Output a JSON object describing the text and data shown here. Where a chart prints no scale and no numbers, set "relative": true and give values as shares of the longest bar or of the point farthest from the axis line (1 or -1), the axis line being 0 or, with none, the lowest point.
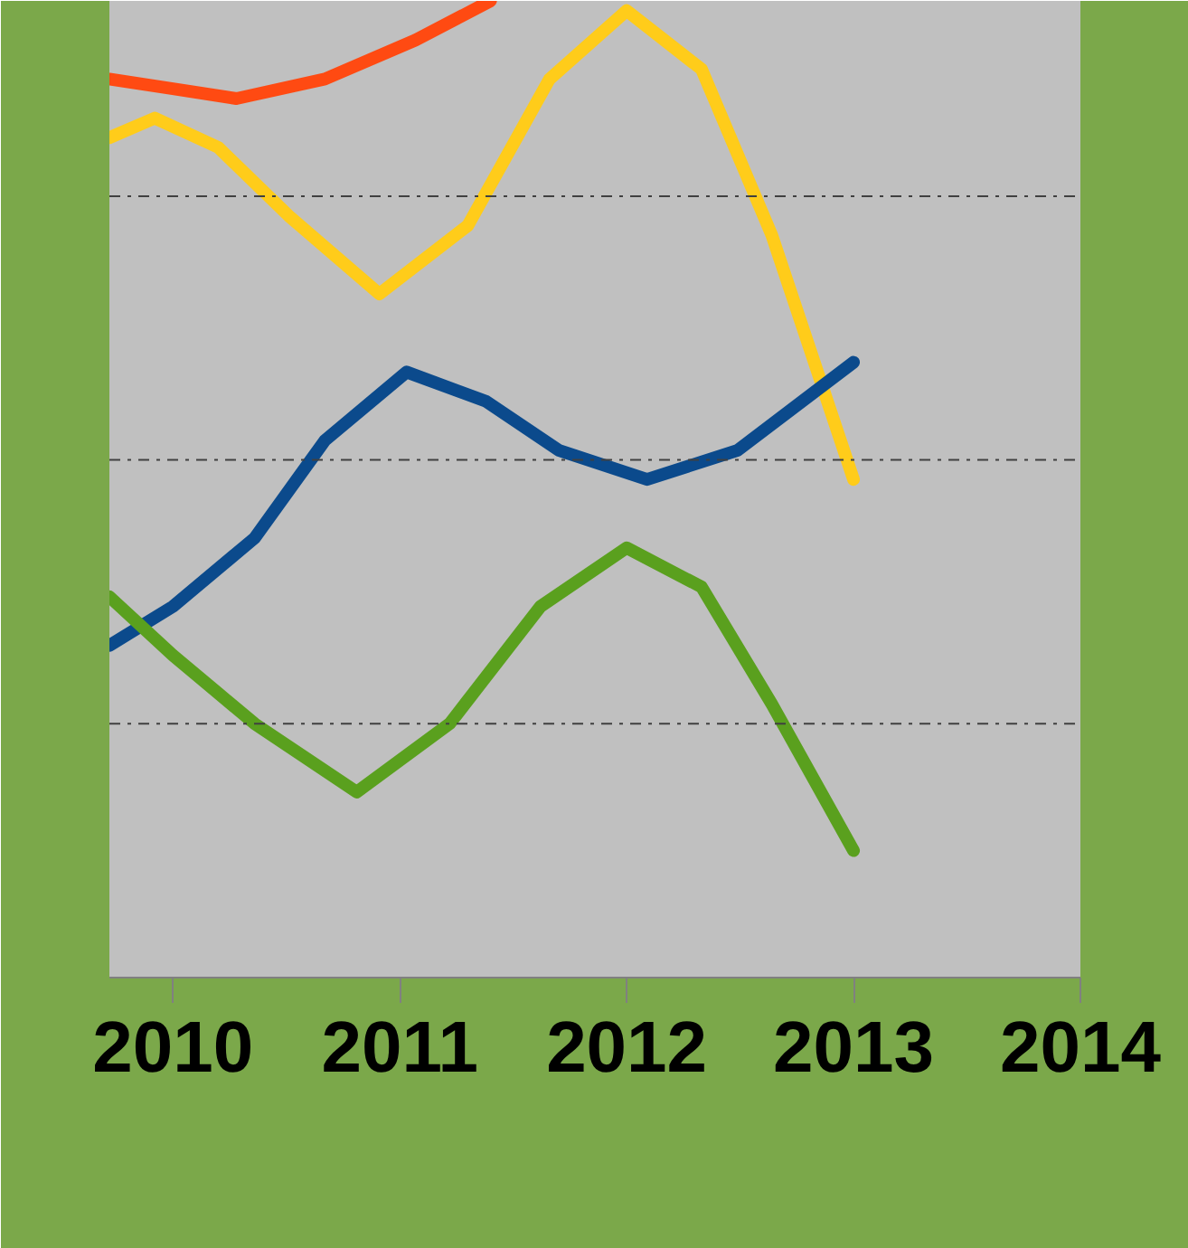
{
  "chart_data": {
    "type": "line",
    "relative": true,
    "xlim": [
      2009.72,
      2014
    ],
    "xticks": [
      2010,
      2011,
      2012,
      2013,
      2014
    ],
    "grid": false,
    "marker": "none",
    "line_style": "solid",
    "series": [
      {
        "color": "#ff4a12",
        "x": [
          2009.72,
          2010.0,
          2010.28,
          2010.67,
          2011.07,
          2011.4
        ],
        "values": [
          0.92,
          0.91,
          0.9,
          0.92,
          0.96,
          1.0
        ]
      },
      {
        "color": "#ffcc1a",
        "x": [
          2009.72,
          2009.92,
          2010.2,
          2010.51,
          2010.91,
          2011.3,
          2011.66,
          2012.0,
          2012.33,
          2012.64,
          2013.0
        ],
        "values": [
          0.86,
          0.88,
          0.85,
          0.78,
          0.7,
          0.77,
          0.92,
          0.99,
          0.93,
          0.76,
          0.51
        ]
      },
      {
        "color": "#0b4a8c",
        "x": [
          2009.72,
          2010.0,
          2010.36,
          2010.67,
          2011.03,
          2011.38,
          2011.7,
          2012.09,
          2012.49,
          2013.0
        ],
        "values": [
          0.34,
          0.38,
          0.45,
          0.55,
          0.62,
          0.59,
          0.54,
          0.51,
          0.54,
          0.63
        ]
      },
      {
        "color": "#5aa01e",
        "x": [
          2009.72,
          2010.0,
          2010.36,
          2010.81,
          2011.22,
          2011.62,
          2012.0,
          2012.33,
          2012.64,
          2013.0
        ],
        "values": [
          0.39,
          0.33,
          0.26,
          0.19,
          0.26,
          0.38,
          0.44,
          0.4,
          0.28,
          0.13
        ]
      }
    ],
    "ref_lines": [
      {
        "axis": "y",
        "value": 0.26,
        "color": "#404040",
        "line_style": "dashdot"
      },
      {
        "axis": "y",
        "value": 0.53,
        "color": "#404040",
        "line_style": "dashdot"
      },
      {
        "axis": "y",
        "value": 0.8,
        "color": "#404040",
        "line_style": "dashdot"
      }
    ]
  }
}
